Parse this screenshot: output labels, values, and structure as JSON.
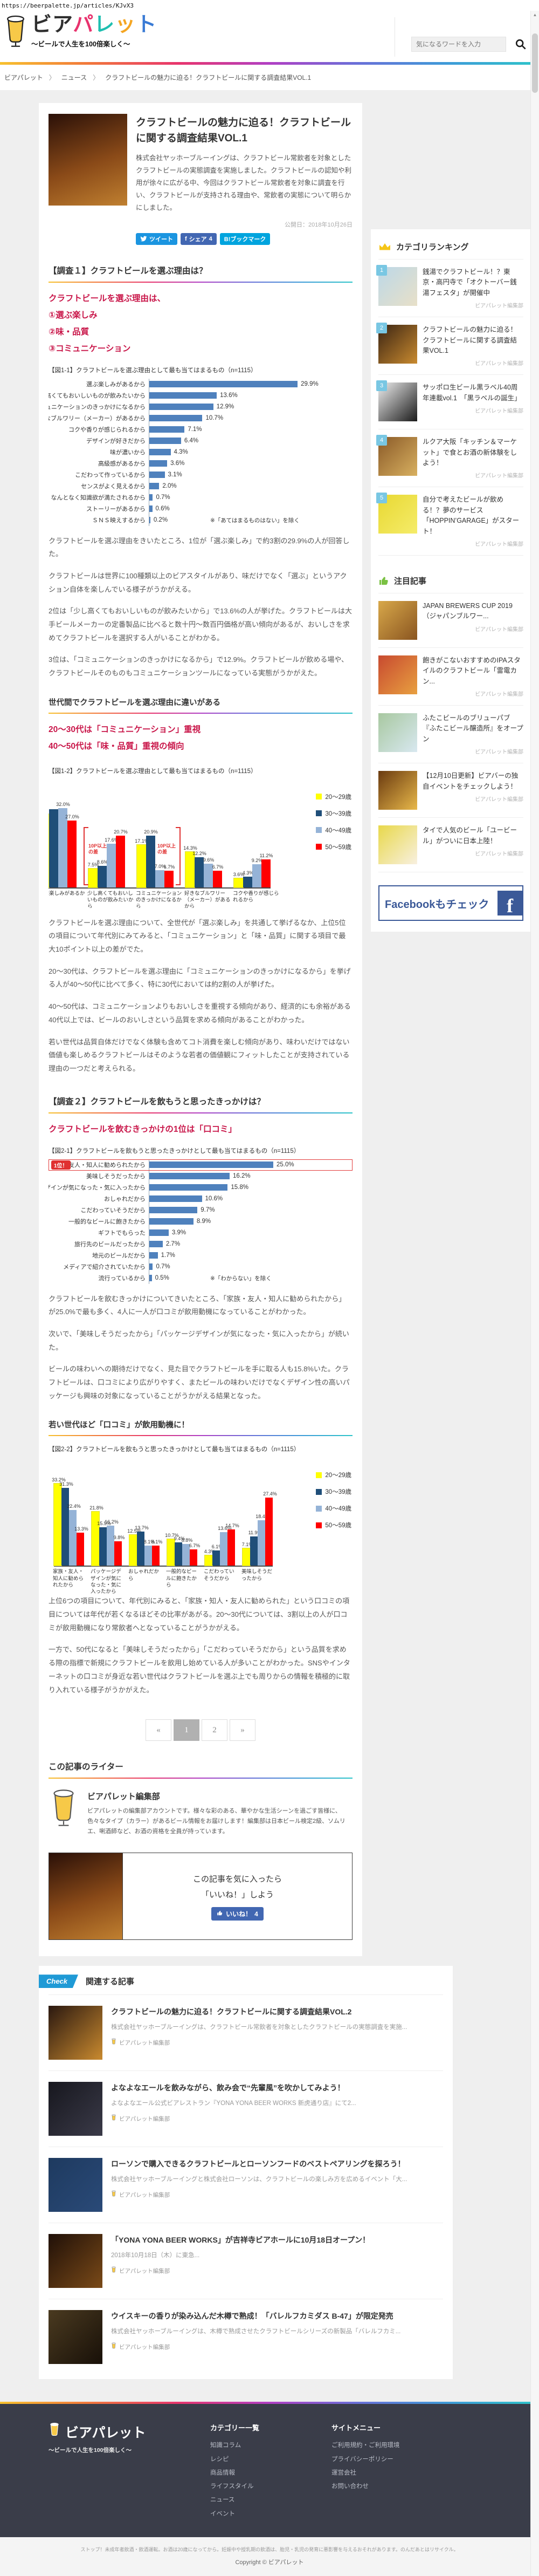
{
  "meta": {
    "url": "https://beerpalette.jp/articles/KJvX3"
  },
  "icons": {
    "facebook": "f",
    "hatena": "B!",
    "scroll_up": "▲"
  },
  "colors": {
    "accent_red_text": "#c9174a",
    "twitter": "#1b95e0",
    "facebook": "#4267b2",
    "hatena": "#00a4de",
    "facebook_banner": "#3b5998",
    "check_ribbon": "#1f9ad6",
    "rank_badge": "#79c7e3",
    "bar_blue": "#4f81bd"
  },
  "header": {
    "logo_title": "ビアパレット",
    "logo_tagline": "～ビールで人生を100倍楽しく～",
    "search_placeholder": "気になるワードを入力"
  },
  "breadcrumb": [
    "ビアパレット",
    "ニュース",
    "クラフトビールの魅力に迫る！クラフトビールに関する調査結果VOL.1"
  ],
  "article": {
    "title": "クラフトビールの魅力に迫る！クラフトビールに関する調査結果VOL.1",
    "lead": "株式会社ヤッホーブルーイングは、クラフトビール常飲者を対象としたクラフトビールの実態調査を実施しました。クラフトビールの認知や利用が徐々に広がる中、今回はクラフトビール常飲者を対象に調査を行い、クラフトビールが支持される理由や、常飲者の実態について明らかにしました。",
    "published": "公開日：2018年10月26日",
    "share": {
      "tweet": "ツイート",
      "fb_share": "シェア",
      "fb_count": "4",
      "hatena": "B!ブックマーク"
    }
  },
  "survey1": {
    "heading": "【調査１】クラフトビールを選ぶ理由は？",
    "lead_lines": [
      "クラフトビールを選ぶ理由は、",
      "①選ぶ楽しみ",
      "②味・品質",
      "③コミュニケーション"
    ],
    "paragraphs": [
      "クラフトビールを選ぶ理由をきいたところ、1位が「選ぶ楽しみ」で約3割の29.9%の人が回答した。",
      "クラフトビールは世界に100種類以上のビアスタイルがあり、味だけでなく「選ぶ」というアクション自体を楽しんでいる様子がうかがえる。",
      "2位は「少し高くてもおいしいものが飲みたいから」で13.6%の人が挙げた。クラフトビールは大手ビールメーカーの定番製品に比べると数十円～数百円価格が高い傾向があるが、おいしさを求めてクラフトビールを選択する人がいることがわかる。",
      "3位は、「コミュニケーションのきっかけになるから」で12.9%。クラフトビールが飲める場や、クラフトビールそのものもコミュニケーションツールになっている実態がうかがえた。"
    ],
    "subheading": "世代間でクラフトビールを選ぶ理由に違いがある",
    "lead2_lines": [
      "20～30代は「コミュニケーション」重視",
      "40～50代は「味・品質」重視の傾向"
    ],
    "paragraphs2": [
      "クラフトビールを選ぶ理由について、全世代が「選ぶ楽しみ」を共通して挙げるなか、上位5位の項目について年代別にみてみると、「コミュニケーション」と「味・品質」に関する項目で最大10ポイント以上の差がでた。",
      "20～30代は、クラフトビールを選ぶ理由に「コミュニケーションのきっかけになるから」を挙げる人が40～50代に比べて多く、特に30代においては約2割の人が挙げた。",
      "40～50代は、コミュニケーションよりもおいしさを重視する傾向があり、経済的にも余裕がある40代以上では、ビールのおいしさという品質を求める傾向があることがわかった。",
      "若い世代は品質自体だけでなく体験も含めてコト消費を楽しむ傾向があり、味わいだけではない価値も楽しめるクラフトビールはそのような若者の価値観にフィットしたことが支持されている理由の一つだと考えられる。"
    ]
  },
  "survey2": {
    "heading": "【調査２】クラフトビールを飲もうと思ったきっかけは？",
    "lead_lines": [
      "クラフトビールを飲むきっかけの1位は「口コミ」"
    ],
    "paragraphs": [
      "クラフトビールを飲むきっかけについてきいたところ、「家族・友人・知人に勧められたから」が25.0%で最も多く、4人に一人が口コミが飲用動機になっていることがわかった。",
      "次いで、「美味しそうだったから」「パッケージデザインが気になった・気に入ったから」が続いた。",
      "ビールの味わいへの期待だけでなく、見た目でクラフトビールを手に取る人も15.8%いた。クラフトビールは、口コミにより広がりやすく、またビールの味わいだけでなくデザイン性の高いパッケージも興味の対象になっていることがうかがえる結果となった。"
    ],
    "subheading": "若い世代ほど「口コミ」が飲用動機に！",
    "paragraphs2": [
      "上位6つの項目について、年代別にみると、「家族・知人・友人に勧められた」という口コミの項目については年代が若くなるほどその比率があがる。20～30代については、3割以上の人が口コミが飲用動機になり常飲者へとなっていることがうかがえる。",
      "一方で、50代になると「美味しそうだったから」「こだわっていそうだから」という品質を求める際の指標で新規にクラフトビールを飲用し始めている人が多いことがわかった。SNSやインターネットの口コミが身近な若い世代はクラフトビールを選ぶ上でも周りからの情報を積極的に取り入れている様子がうかがえた。"
    ]
  },
  "chart_data": [
    {
      "fig": "図1-1",
      "type": "bar",
      "orientation": "horizontal",
      "title": "【図1-1】クラフトビールを選ぶ理由として最も当てはまるもの（n=1115）",
      "categories": [
        "選ぶ楽しみがあるから",
        "少し高くてもおいしいものが飲みたいから",
        "コミュニケーションのきっかけになるから",
        "好きなブルワリー（メーカー）があるから",
        "コクや香りが感じられるから",
        "デザインが好きだから",
        "味が濃いから",
        "高級感があるから",
        "こだわって作っているから",
        "センスがよく見えるから",
        "なんとなく知識欲が満たされるから",
        "ストーリーがあるから",
        "ＳＮＳ映えするから"
      ],
      "values": [
        29.9,
        13.6,
        12.9,
        10.7,
        7.1,
        6.4,
        4.3,
        3.6,
        3.1,
        2.0,
        0.7,
        0.6,
        0.2
      ],
      "value_suffix": "%",
      "bar_color": "#4f81bd",
      "xlim": [
        0,
        33
      ],
      "note": "※「あてはまるものはない」を除く"
    },
    {
      "fig": "図1-2",
      "type": "bar",
      "orientation": "grouped-vertical",
      "title": "【図1-2】クラフトビールを選ぶ理由として最も当てはまるもの（n=1115）",
      "categories": [
        "選ぶ楽しみがあるから",
        "少し高くてもおいしいものが飲みたいから",
        "コミュニケーションのきっかけになるから",
        "好きなブルワリー（メーカー）があるから",
        "コクや香りが感じられるから"
      ],
      "series": [
        {
          "name": "20～29歳",
          "color": "#ffff00",
          "values": [
            29.5,
            7.5,
            17.1,
            14.3,
            3.6
          ]
        },
        {
          "name": "30～39歳",
          "color": "#1f4e79",
          "values": [
            31.5,
            8.6,
            20.9,
            12.2,
            4.3
          ]
        },
        {
          "name": "40～49歳",
          "color": "#95b3d7",
          "values": [
            32.0,
            17.6,
            7.0,
            9.6,
            9.2
          ]
        },
        {
          "name": "50～59歳",
          "color": "#ff0000",
          "values": [
            27.0,
            20.7,
            6.7,
            6.7,
            11.2
          ]
        }
      ],
      "hidden_value_labels": [
        [
          0,
          0
        ],
        [
          1,
          0
        ]
      ],
      "annotations": [
        {
          "text": "10P以上の差",
          "category": 1,
          "side": "left"
        },
        {
          "text": "10P以上の差",
          "category": 2,
          "side": "right"
        }
      ],
      "legend_position": "right",
      "ylim": [
        0,
        36
      ],
      "clip_left": 26
    },
    {
      "fig": "図2-1",
      "type": "bar",
      "orientation": "horizontal",
      "title": "【図2-1】クラフトビールを飲もうと思ったきっかけとして最も当てはまるもの（n=1115）",
      "categories": [
        "家族・友人・知人に勧められたから",
        "美味しそうだったから",
        "パッケージデザインが気になった・気に入ったから",
        "おしゃれだから",
        "こだわっていそうだから",
        "一般的なビールに飽きたから",
        "ギフトでもらった",
        "旅行先のビールだったから",
        "地元のビールだから",
        "メディアで紹介されていたから",
        "流行っているから"
      ],
      "values": [
        25.0,
        16.2,
        15.8,
        10.6,
        9.7,
        8.9,
        3.9,
        2.7,
        1.7,
        0.7,
        0.5
      ],
      "value_suffix": "%",
      "bar_color": "#4f81bd",
      "xlim": [
        0,
        28
      ],
      "highlight_index": 0,
      "badge": "1位！",
      "note": "※「わからない」を除く"
    },
    {
      "fig": "図2-2",
      "type": "bar",
      "orientation": "grouped-vertical",
      "title": "【図2-2】クラフトビールを飲もうと思ったきっかけとして最も当てはまるもの（n=1115）",
      "categories": [
        "家族・友人・知人に勧められたから",
        "パッケージデザインが気になった・気に入ったから",
        "おしゃれだから",
        "一般的なビールに飽きたから",
        "こだわっていそうだから",
        "美味しそうだったから"
      ],
      "series": [
        {
          "name": "20～29歳",
          "color": "#ffff00",
          "values": [
            33.2,
            21.8,
            12.5,
            10.7,
            4.3,
            7.1
          ]
        },
        {
          "name": "30～39歳",
          "color": "#1f4e79",
          "values": [
            31.3,
            15.5,
            13.7,
            9.4,
            6.1,
            11.9
          ]
        },
        {
          "name": "40～49歳",
          "color": "#95b3d7",
          "values": [
            22.4,
            16.2,
            8.1,
            8.8,
            13.6,
            18.4
          ]
        },
        {
          "name": "50～59歳",
          "color": "#ff0000",
          "values": [
            13.3,
            9.8,
            8.1,
            6.7,
            14.7,
            27.4
          ]
        }
      ],
      "legend_position": "right",
      "ylim": [
        0,
        36
      ]
    }
  ],
  "pagination": {
    "prev": "«",
    "pages": [
      "1",
      "2"
    ],
    "active": "1",
    "next": "»"
  },
  "writer": {
    "heading": "この記事のライター",
    "name": "ビアパレット編集部",
    "bio": "ビアパレットの編集部アカウントです。様々な彩のある、華やかな生活シーンを過ごす皆様に、色々なタイプ（カラー）があるビール情報をお届けします！編集部は日本ビール検定2級、ソムリエ、唎酒師など、お酒の資格を全員が持っています。"
  },
  "like_box": {
    "line1": "この記事を気に入ったら",
    "line2": "「いいね！」しよう",
    "button": "いいね！",
    "count": "4"
  },
  "related": {
    "badge": "Check",
    "heading": "関連する記事",
    "items": [
      {
        "title": "クラフトビールの魅力に迫る！クラフトビールに関する調査結果VOL.2",
        "desc": "株式会社ヤッホーブルーイングは、クラフトビール常飲者を対象としたクラフトビールの実態調査を実施...",
        "author": "ビアパレット編集部",
        "thumb": [
          "#2a1810",
          "#c98a2f"
        ]
      },
      {
        "title": "よなよなエールを飲みながら、飲み会で“先輩風”を吹かしてみよう！",
        "desc": "よなよなエール公式ビアレストラン『YONA YONA BEER WORKS 新虎通り店』にて2...",
        "author": "ビアパレット編集部",
        "thumb": [
          "#17171e",
          "#3a3a48"
        ]
      },
      {
        "title": "ローソンで購入できるクラフトビールとローソンフードのベストペアリングを探ろう！",
        "desc": "株式会社ヤッホーブルーイングと株式会社ローソンは、クラフトビールの楽しみ方を広めるイベント「大...",
        "author": "ビアパレット編集部",
        "thumb": [
          "#1e3a5f",
          "#2a4a78"
        ]
      },
      {
        "title": "「YONA YONA BEER WORKS」が吉祥寺ビアホールに10月18日オープン！",
        "desc": "2018年10月18日（木）に東急...",
        "author": "ビアパレット編集部",
        "thumb": [
          "#201008",
          "#7a4a18"
        ]
      },
      {
        "title": "ウイスキーの香りが染み込んだ木樽で熟成！「バレルフカミダス B-47」が限定発売",
        "desc": "株式会社ヤッホーブルーイングは、木樽で熟成させたクラフトビールシリーズの新製品「バレルフカミ...",
        "author": "ビアパレット編集部",
        "thumb": [
          "#4a3a20",
          "#181008"
        ]
      }
    ]
  },
  "sidebar": {
    "ranking": {
      "title": "カテゴリランキング",
      "items": [
        {
          "rank": "1",
          "title": "銭湯でクラフトビール！？東京・高円寺で「オクトーバー銭湯フェスタ」が開催中",
          "author": "ビアパレット編集部",
          "thumb": [
            "#bcd8e8",
            "#e8e0c8"
          ]
        },
        {
          "rank": "2",
          "title": "クラフトビールの魅力に迫る！クラフトビールに関する調査結果VOL.1",
          "author": "ビアパレット編集部",
          "thumb": [
            "#3a2413",
            "#c98a2f"
          ]
        },
        {
          "rank": "3",
          "title": "サッポロ生ビール黒ラベル40周年連載vol.1　「黒ラベルの誕生」",
          "author": "ビアパレット編集部",
          "thumb": [
            "#f0f0f0",
            "#1a1a1a"
          ]
        },
        {
          "rank": "4",
          "title": "ルクア大阪「キッチン＆マーケット」で食とお酒の新体験をしよう！",
          "author": "ビアパレット編集部",
          "thumb": [
            "#8a5a28",
            "#d8b060"
          ]
        },
        {
          "rank": "5",
          "title": "自分で考えたビールが飲める！？夢のサービス「HOPPIN’GARAGE」がスタート！",
          "author": "ビアパレット編集部",
          "thumb": [
            "#e8d832",
            "#f5ec6a"
          ]
        }
      ]
    },
    "featured": {
      "title": "注目記事",
      "items": [
        {
          "title": "JAPAN BREWERS CUP 2019（ジャパンブルワー...",
          "author": "ビアパレット編集部",
          "thumb": [
            "#d8a84a",
            "#8a5520"
          ]
        },
        {
          "title": "飽きがこないおすすめのIPAスタイルのクラフトビール「雷電カン...",
          "author": "ビアパレット編集部",
          "thumb": [
            "#c84a30",
            "#e8a040"
          ]
        },
        {
          "title": "ふたこビールのブリューパブ『ふたこビール醸造所』をオープン",
          "author": "ビアパレット編集部",
          "thumb": [
            "#a8c8a0",
            "#d8e8f0"
          ]
        },
        {
          "title": "【12月10日更新】ビアバーの独自イベントをチェックしよう！",
          "author": "ビアパレット編集部",
          "thumb": [
            "#6a3a10",
            "#e8b84a"
          ]
        },
        {
          "title": "タイで人気のビール「ユービール」がついに日本上陸！",
          "author": "ビアパレット編集部",
          "thumb": [
            "#e8d84a",
            "#f8f0e0"
          ]
        }
      ]
    },
    "facebook_banner": "Facebookもチェック"
  },
  "footer": {
    "logo_title": "ビアパレット",
    "logo_tagline": "～ビールで人生を100倍楽しく～",
    "categories": {
      "title": "カテゴリー一覧",
      "items": [
        "知識コラム",
        "レシピ",
        "商品情報",
        "ライフスタイル",
        "ニュース",
        "イベント"
      ]
    },
    "sitemenu": {
      "title": "サイトメニュー",
      "items": [
        "ご利用規約・ご利用環境",
        "プライバシーポリシー",
        "運営会社",
        "お問い合わせ"
      ]
    },
    "notice": "ストップ！未成年者飲酒・飲酒運転。お酒は20歳になってから。妊娠中や授乳期の飲酒は、胎児・乳児の発育に悪影響を与えるおそれがあります。のんだあとはリサイクル。",
    "copyright": "Copyright © ビアパレット"
  }
}
